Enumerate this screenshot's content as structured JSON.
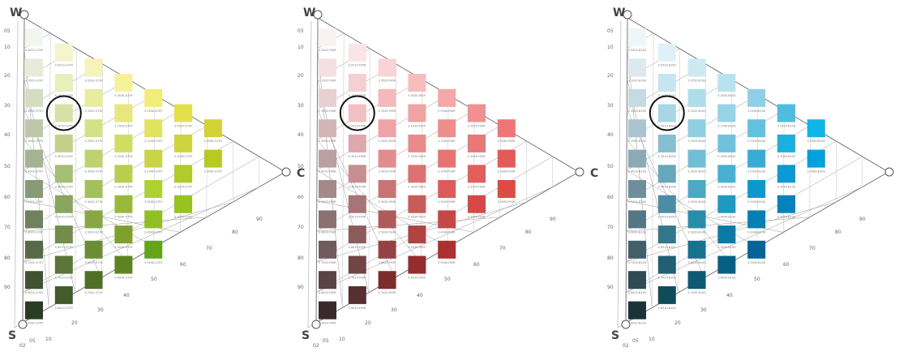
{
  "vertex_labels": {
    "whiteness": "W",
    "blackness": "S",
    "chromaticness": "C"
  },
  "left_scale_labels": [
    "05",
    "10",
    "20",
    "30",
    "40",
    "50",
    "60",
    "70",
    "80",
    "90"
  ],
  "bottom_scale_labels": [
    "02",
    "05",
    "10",
    "20",
    "30",
    "40",
    "50",
    "60",
    "70",
    "80",
    "90"
  ],
  "triangles": [
    {
      "name": "green-yellow",
      "shows_c_label": true,
      "hue_code": "G70Y",
      "circled_swatch": "2010",
      "columns": [
        [
          "#f3f6ec",
          "#e6ecd8",
          "#d3ddc2",
          "#bdc8aa",
          "#a4b491",
          "#889a76",
          "#6f815d",
          "#576a47",
          "#3f5333",
          "#283d22"
        ],
        [
          "#f3f5cf",
          "#e8efbb",
          "#d5e2a5",
          "#c0d088",
          "#a5bd74",
          "#8aa55e",
          "#718c4b",
          "#5a7538",
          "#415b2a"
        ],
        [
          "#f5f3b8",
          "#e8ec9d",
          "#d4e186",
          "#bdd36e",
          "#a3c15a",
          "#86a744",
          "#6a8d35",
          "#4f7027"
        ],
        [
          "#f5f29a",
          "#e7e77d",
          "#d1dc63",
          "#b9ce4e",
          "#9ab93b",
          "#7ea12d",
          "#5d8420"
        ],
        [
          "#f2ec7a",
          "#e1e25e",
          "#c9d447",
          "#add032",
          "#8fbf22",
          "#62a51b"
        ],
        [
          "#e3e04c",
          "#cbd53b",
          "#b3ca2b",
          "#98c21f"
        ],
        [
          "#d4d232",
          "#b8ca22"
        ]
      ]
    },
    {
      "name": "red",
      "shows_c_label": true,
      "hue_code": "Y90R",
      "circled_swatch": "2020",
      "columns": [
        [
          "#faf1f1",
          "#f4e0e1",
          "#e8d0d2",
          "#d3b5b7",
          "#baa0a2",
          "#a4898a",
          "#8b7172",
          "#725b5c",
          "#5a4445",
          "#3a2a2b"
        ],
        [
          "#fae4e6",
          "#f5d0d3",
          "#f1c0c3",
          "#dfa8aa",
          "#c68e90",
          "#a87476",
          "#8c5c5c",
          "#724545",
          "#562f30"
        ],
        [
          "#f9d3d6",
          "#f3b9bb",
          "#eea4a6",
          "#e18d8e",
          "#c97375",
          "#b05a5b",
          "#944243",
          "#7b2c2d"
        ],
        [
          "#f6bcbe",
          "#f0a3a3",
          "#e98b8b",
          "#dc7272",
          "#c95b5b",
          "#b04242",
          "#962c2d"
        ],
        [
          "#f4a8a8",
          "#ed8e8d",
          "#e67473",
          "#db5c5b",
          "#c74646",
          "#ad3030"
        ],
        [
          "#f09090",
          "#e97777",
          "#e35e5d",
          "#d84747"
        ],
        [
          "#ee7674",
          "#e45a57",
          "#e04a45"
        ]
      ]
    },
    {
      "name": "blue",
      "shows_c_label": false,
      "hue_code": "B10G",
      "circled_swatch": "2030",
      "columns": [
        [
          "#eef6f8",
          "#dce9ee",
          "#c5dae2",
          "#a9c5d0",
          "#8aaab8",
          "#6d8f9c",
          "#557684",
          "#405f6a",
          "#2e4a53",
          "#193338"
        ],
        [
          "#dff1f6",
          "#c5e6ef",
          "#a9d6e4",
          "#85bfd1",
          "#67a7bb",
          "#4b8ea3",
          "#33778b",
          "#216072",
          "#114a58"
        ],
        [
          "#cdeaf3",
          "#addde9",
          "#8fcfe1",
          "#6fbfd6",
          "#4ba9c4",
          "#2a8cab",
          "#15738f",
          "#0e5a72"
        ],
        [
          "#b8e2ef",
          "#95d3e7",
          "#6fc2de",
          "#48b0d3",
          "#1e99c2",
          "#0b7ba5",
          "#065f85"
        ],
        [
          "#8fd0e6",
          "#63c0df",
          "#37add6",
          "#0b98ca",
          "#0580b4",
          "#036595"
        ],
        [
          "#4dbee3",
          "#1ab0df",
          "#0b9ad3",
          "#0482bd"
        ],
        [
          "#10b5e8",
          "#00a2dd"
        ]
      ]
    }
  ]
}
